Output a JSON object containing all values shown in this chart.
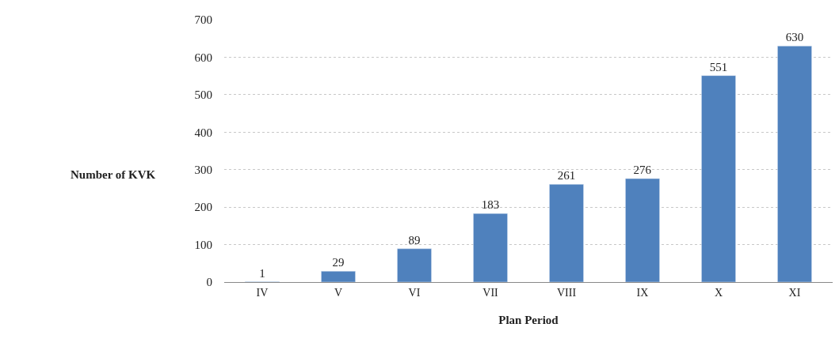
{
  "chart_data": {
    "type": "bar",
    "xlabel": "Plan Period",
    "ylabel": "Number of KVK",
    "categories": [
      "IV",
      "V",
      "VI",
      "VII",
      "VIII",
      "IX",
      "X",
      "XI"
    ],
    "values": [
      1,
      29,
      89,
      183,
      261,
      276,
      551,
      630
    ],
    "color": "#4f81bd",
    "data_labels": true,
    "ylim": [
      0,
      700
    ],
    "yticks": [
      0,
      100,
      200,
      300,
      400,
      500,
      600,
      700
    ],
    "grid": "y",
    "legend": false
  }
}
